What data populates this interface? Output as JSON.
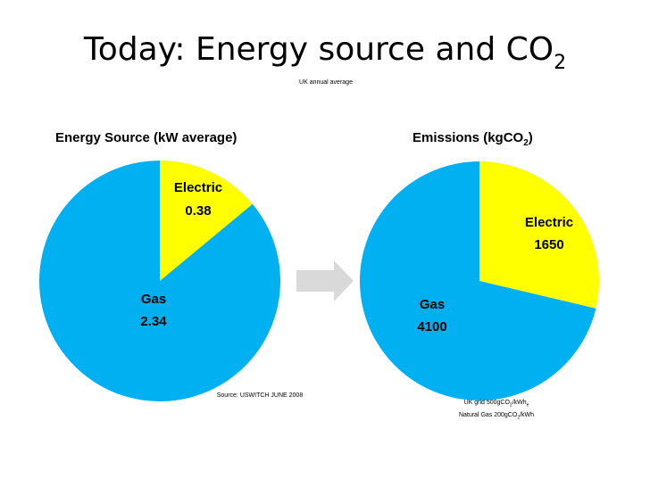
{
  "title": {
    "text": "Today: Energy source and CO",
    "subscript": "2"
  },
  "subtitle": "UK annual average",
  "chart_data": [
    {
      "type": "pie",
      "title": "Energy Source (kW average)",
      "labels": [
        "Electric",
        "Gas"
      ],
      "values": [
        0.38,
        2.34
      ],
      "value_labels": [
        "0.38",
        "2.34"
      ],
      "colors": [
        "#ffff00",
        "#00b0f0"
      ]
    },
    {
      "type": "pie",
      "title": "Emissions (kgCO2)",
      "title_parts": {
        "main": "Emissions (kgCO",
        "sub": "2",
        "close": ")"
      },
      "labels": [
        "Electric",
        "Gas"
      ],
      "values": [
        1650,
        4100
      ],
      "value_labels": [
        "1650",
        "4100"
      ],
      "colors": [
        "#ffff00",
        "#00b0f0"
      ]
    }
  ],
  "arrow": {
    "color": "#d9d9d9"
  },
  "source_note": "Source: USWITCH JUNE 2008",
  "grid_note": {
    "line1": "UK grid 500gCO",
    "line1_sub": "2",
    "line1_end": "/kWh",
    "line1_end_sub": "e",
    "line2": "Natural Gas 200gCO",
    "line2_sub": "2",
    "line2_end": "/kWh"
  }
}
